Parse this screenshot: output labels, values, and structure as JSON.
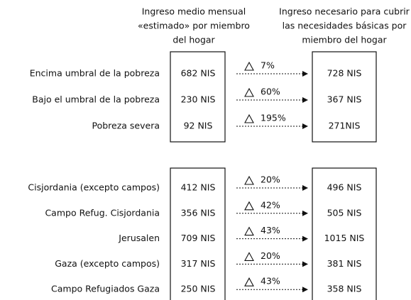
{
  "header": {
    "left_column": [
      "Ingreso medio mensual",
      "«estimado» por miembro",
      "del hogar"
    ],
    "right_column": [
      "Ingreso necesario para cubrir",
      "las necesidades básicas  por",
      "miembro del hogar"
    ]
  },
  "groups": [
    {
      "rows": [
        {
          "label": "Encima umbral de la pobreza",
          "income": "682 NIS",
          "delta": "7%",
          "required": "728 NIS"
        },
        {
          "label": "Bajo el umbral de la pobreza",
          "income": "230 NIS",
          "delta": "60%",
          "required": "367 NIS"
        },
        {
          "label": "Pobreza severa",
          "income": "92 NIS",
          "delta": "195%",
          "required": "271NIS"
        }
      ]
    },
    {
      "rows": [
        {
          "label": "Cisjordania (excepto campos)",
          "income": "412 NIS",
          "delta": "20%",
          "required": "496 NIS"
        },
        {
          "label": "Campo Refug. Cisjordania",
          "income": "356 NIS",
          "delta": "42%",
          "required": "505 NIS"
        },
        {
          "label": "Jerusalen",
          "income": "709 NIS",
          "delta": "43%",
          "required": "1015 NIS"
        },
        {
          "label": "Gaza (excepto campos)",
          "income": "317 NIS",
          "delta": "20%",
          "required": "381 NIS"
        },
        {
          "label": "Campo Refugiados Gaza",
          "income": "250 NIS",
          "delta": "43%",
          "required": "358 NIS"
        }
      ]
    }
  ]
}
